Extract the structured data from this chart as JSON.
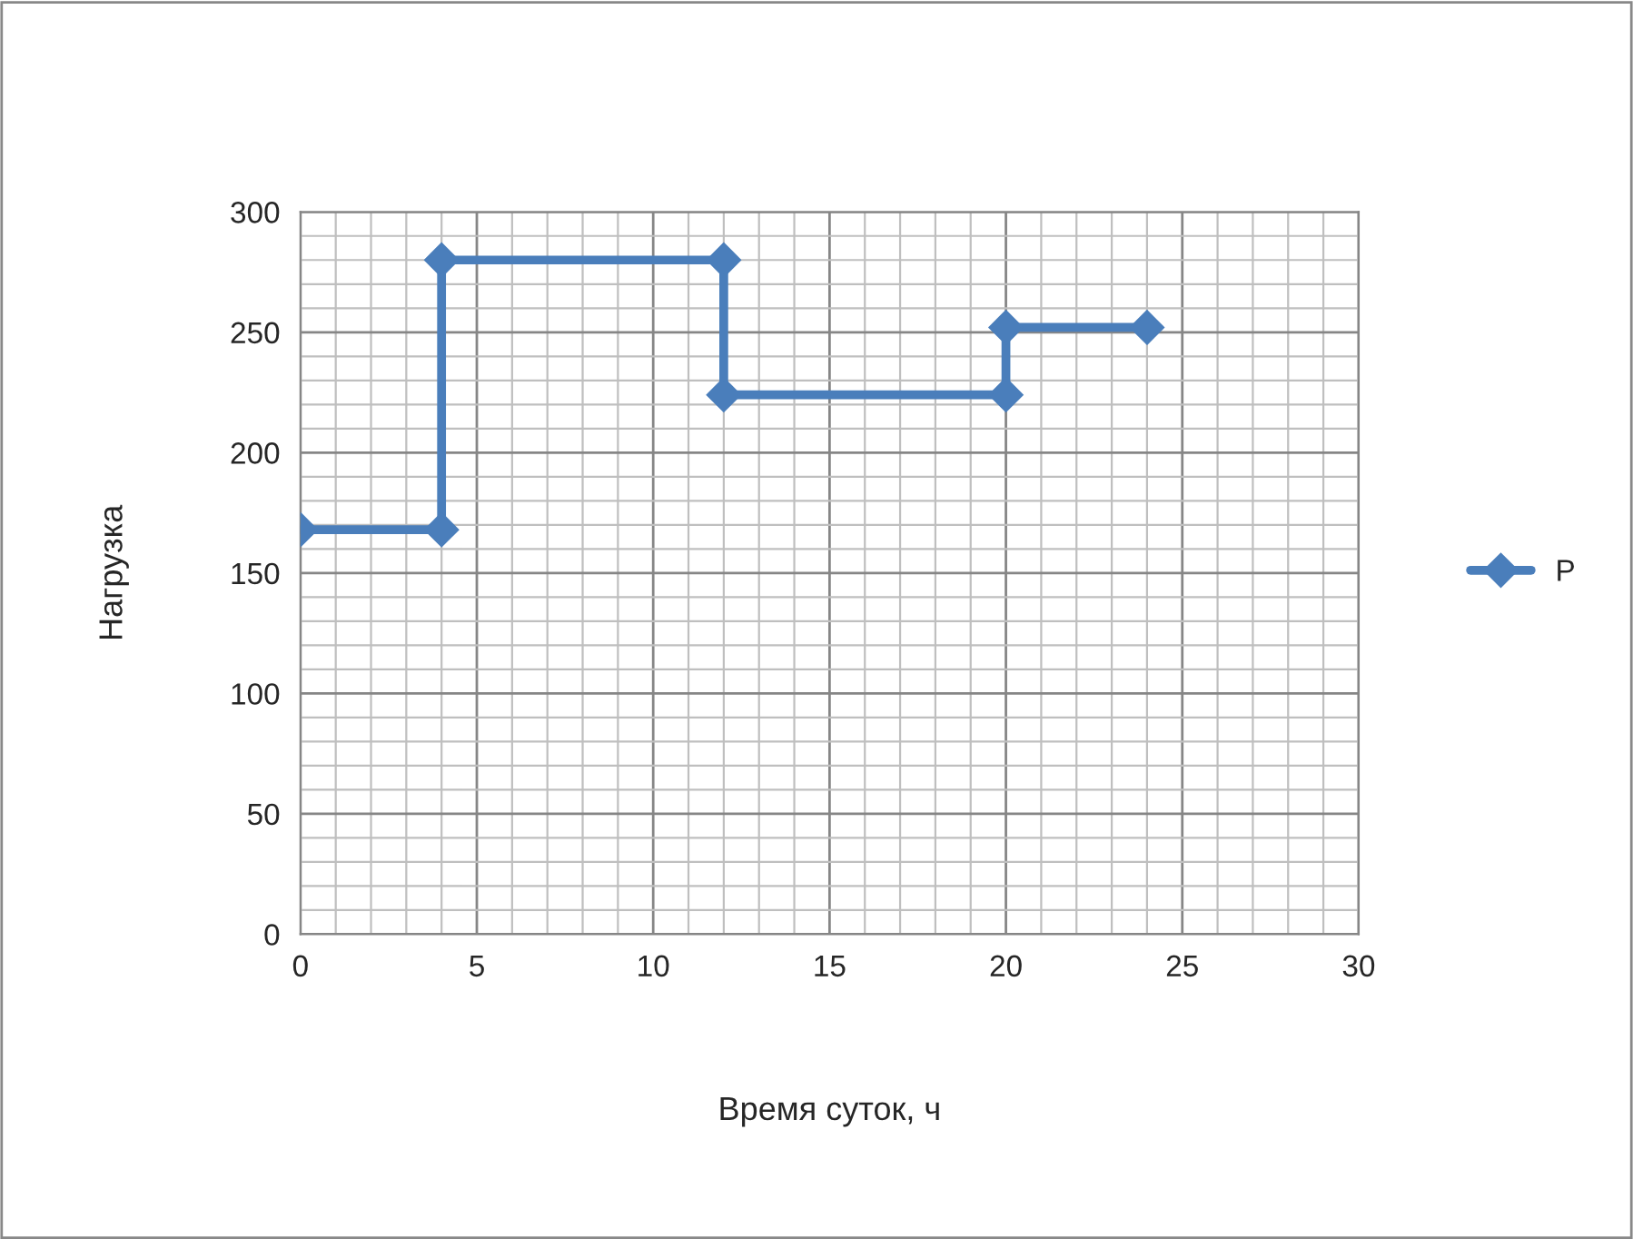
{
  "chart_data": {
    "type": "line",
    "xlabel": "Время суток, ч",
    "ylabel": "Нагрузка",
    "series": [
      {
        "name": "P",
        "color": "#4a7ebb",
        "x": [
          0,
          4,
          4,
          12,
          12,
          20,
          20,
          24
        ],
        "values": [
          168,
          168,
          280,
          280,
          224,
          224,
          252,
          252
        ]
      }
    ],
    "xlim": [
      0,
      30
    ],
    "xticks": [
      0,
      5,
      10,
      15,
      20,
      25,
      30
    ],
    "ylim": [
      0,
      300
    ],
    "yticks": [
      0,
      50,
      100,
      150,
      200,
      250,
      300
    ],
    "grid": true,
    "legend": "right",
    "marker": "diamond",
    "line_style": "solid"
  }
}
